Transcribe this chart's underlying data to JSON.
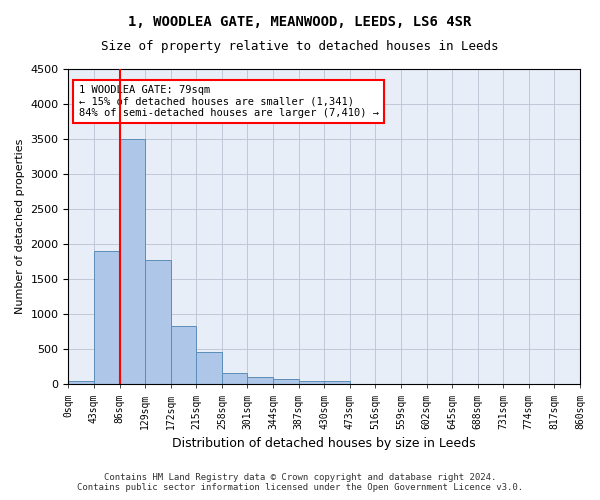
{
  "title": "1, WOODLEA GATE, MEANWOOD, LEEDS, LS6 4SR",
  "subtitle": "Size of property relative to detached houses in Leeds",
  "xlabel": "Distribution of detached houses by size in Leeds",
  "ylabel": "Number of detached properties",
  "bar_values": [
    50,
    1900,
    3500,
    1780,
    840,
    460,
    160,
    100,
    70,
    55,
    45,
    0,
    0,
    0,
    0,
    0,
    0,
    0,
    0,
    0
  ],
  "bin_edges": [
    "0sqm",
    "43sqm",
    "86sqm",
    "129sqm",
    "172sqm",
    "215sqm",
    "258sqm",
    "301sqm",
    "344sqm",
    "387sqm",
    "430sqm",
    "473sqm",
    "516sqm",
    "559sqm",
    "602sqm",
    "645sqm",
    "688sqm",
    "731sqm",
    "774sqm",
    "817sqm",
    "860sqm"
  ],
  "bar_color": "#aec6e8",
  "bar_edge_color": "#5b8db8",
  "vline_color": "red",
  "vline_pos": 1.5,
  "ylim": [
    0,
    4500
  ],
  "yticks": [
    0,
    500,
    1000,
    1500,
    2000,
    2500,
    3000,
    3500,
    4000,
    4500
  ],
  "annotation_text": "1 WOODLEA GATE: 79sqm\n← 15% of detached houses are smaller (1,341)\n84% of semi-detached houses are larger (7,410) →",
  "annotation_box_color": "white",
  "annotation_box_edge_color": "red",
  "footer_line1": "Contains HM Land Registry data © Crown copyright and database right 2024.",
  "footer_line2": "Contains public sector information licensed under the Open Government Licence v3.0.",
  "background_color": "#e8eef8",
  "grid_color": "#c0c8d8"
}
